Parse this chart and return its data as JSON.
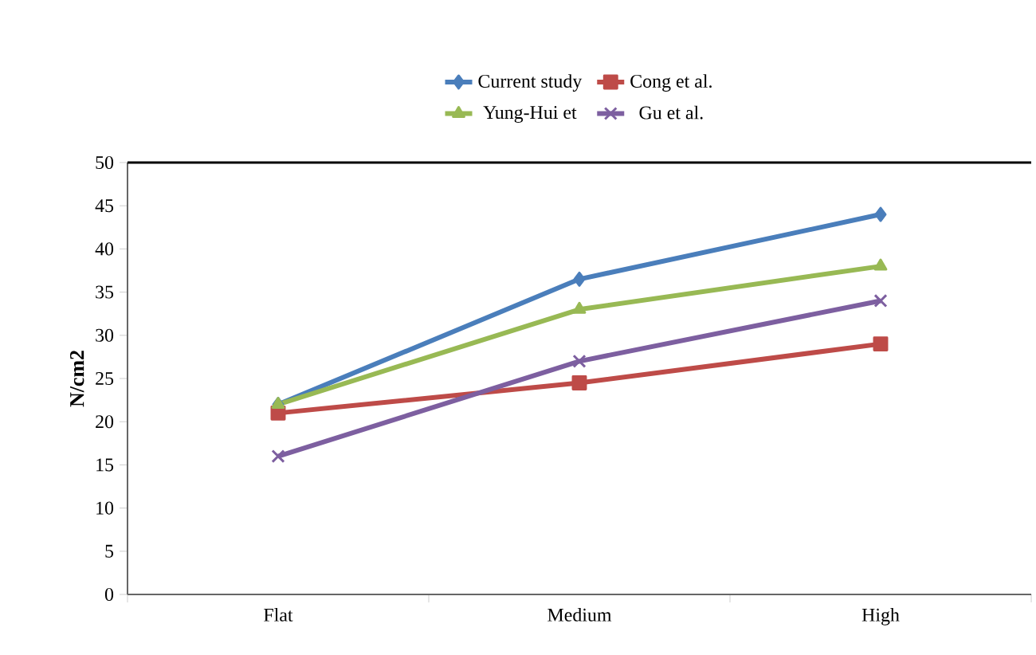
{
  "chart_data": {
    "type": "line",
    "ylabel": "N/cm2",
    "categories": [
      "Flat",
      "Medium",
      "High"
    ],
    "series": [
      {
        "name": "Current study",
        "color": "#4a7ebb",
        "marker": "diamond",
        "values": [
          22,
          36.5,
          44
        ]
      },
      {
        "name": "Cong et al.",
        "color": "#be4b48",
        "marker": "square",
        "values": [
          21,
          24.5,
          29
        ]
      },
      {
        "name": "Yung-Hui et",
        "color": "#98b954",
        "marker": "triangle",
        "values": [
          22,
          33,
          38
        ]
      },
      {
        "name": "Gu et al.",
        "color": "#7d5fa0",
        "marker": "cross",
        "values": [
          16,
          27,
          34
        ]
      }
    ],
    "ylim": [
      0,
      50
    ],
    "yticks": [
      0,
      5,
      10,
      15,
      20,
      25,
      30,
      35,
      40,
      45,
      50
    ],
    "legend": "top",
    "line_style": "solid"
  }
}
